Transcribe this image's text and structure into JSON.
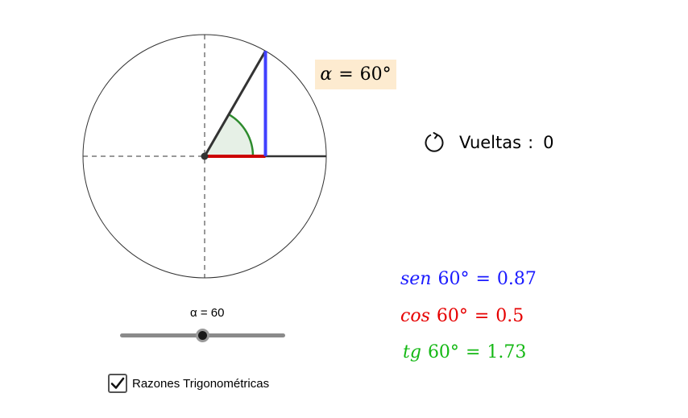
{
  "angle": {
    "degrees": 60,
    "label_symbol": "α",
    "label_equals": "=",
    "label_value": "60°"
  },
  "laps": {
    "label": "Vueltas",
    "colon": ":",
    "value": "0"
  },
  "trig": {
    "sin": {
      "fn": "sen",
      "arg": "60°",
      "equals": "=",
      "value": "0.87",
      "color": "#1a1aff"
    },
    "cos": {
      "fn": "cos",
      "arg": "60°",
      "equals": "=",
      "value": "0.5",
      "color": "#e60000"
    },
    "tg": {
      "fn": "tg",
      "arg": "60°",
      "equals": "=",
      "value": "1.73",
      "color": "#14b814"
    }
  },
  "slider": {
    "caption": "α = 60",
    "min": 0,
    "max": 120,
    "value": 60
  },
  "checkbox": {
    "label": "Razones Trigonométricas",
    "checked": true
  },
  "colors": {
    "angle_label_bg": "#fdebd0",
    "sector_fill": "#e6f0e6",
    "sector_arc": "#2e8b2e",
    "sin_segment": "#4040ff",
    "cos_segment": "#cc0000",
    "radius_line": "#333333"
  },
  "icons": {
    "reset": "rotate-ccw-icon",
    "check": "checkmark-icon"
  }
}
